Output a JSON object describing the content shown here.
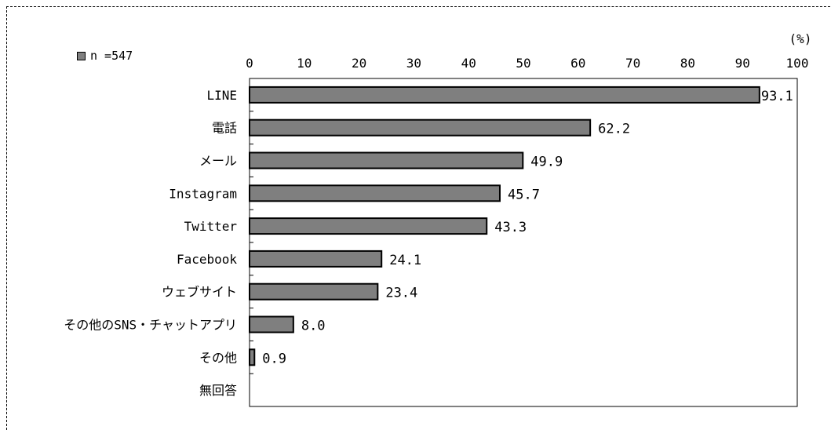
{
  "legend": {
    "label": "n =547",
    "color": "#7f7f7f"
  },
  "unit_label": "(%)",
  "chart_data": {
    "type": "bar",
    "orientation": "horizontal",
    "categories": [
      "LINE",
      "電話",
      "メール",
      "Instagram",
      "Twitter",
      "Facebook",
      "ウェブサイト",
      "その他のSNS・チャットアプリ",
      "その他",
      "無回答"
    ],
    "series": [
      {
        "name": "n =547",
        "values": [
          93.1,
          62.2,
          49.9,
          45.7,
          43.3,
          24.1,
          23.4,
          8.0,
          0.9,
          null
        ]
      }
    ],
    "value_labels": [
      "93.1",
      "62.2",
      "49.9",
      "45.7",
      "43.3",
      "24.1",
      "23.4",
      "8.0",
      "0.9",
      ""
    ],
    "xticks": [
      "0",
      "10",
      "20",
      "30",
      "40",
      "50",
      "60",
      "70",
      "80",
      "90",
      "100"
    ],
    "xlim": [
      0,
      100
    ],
    "grid": false,
    "legend_position": "top-left",
    "bar_color": "#7f7f7f"
  }
}
